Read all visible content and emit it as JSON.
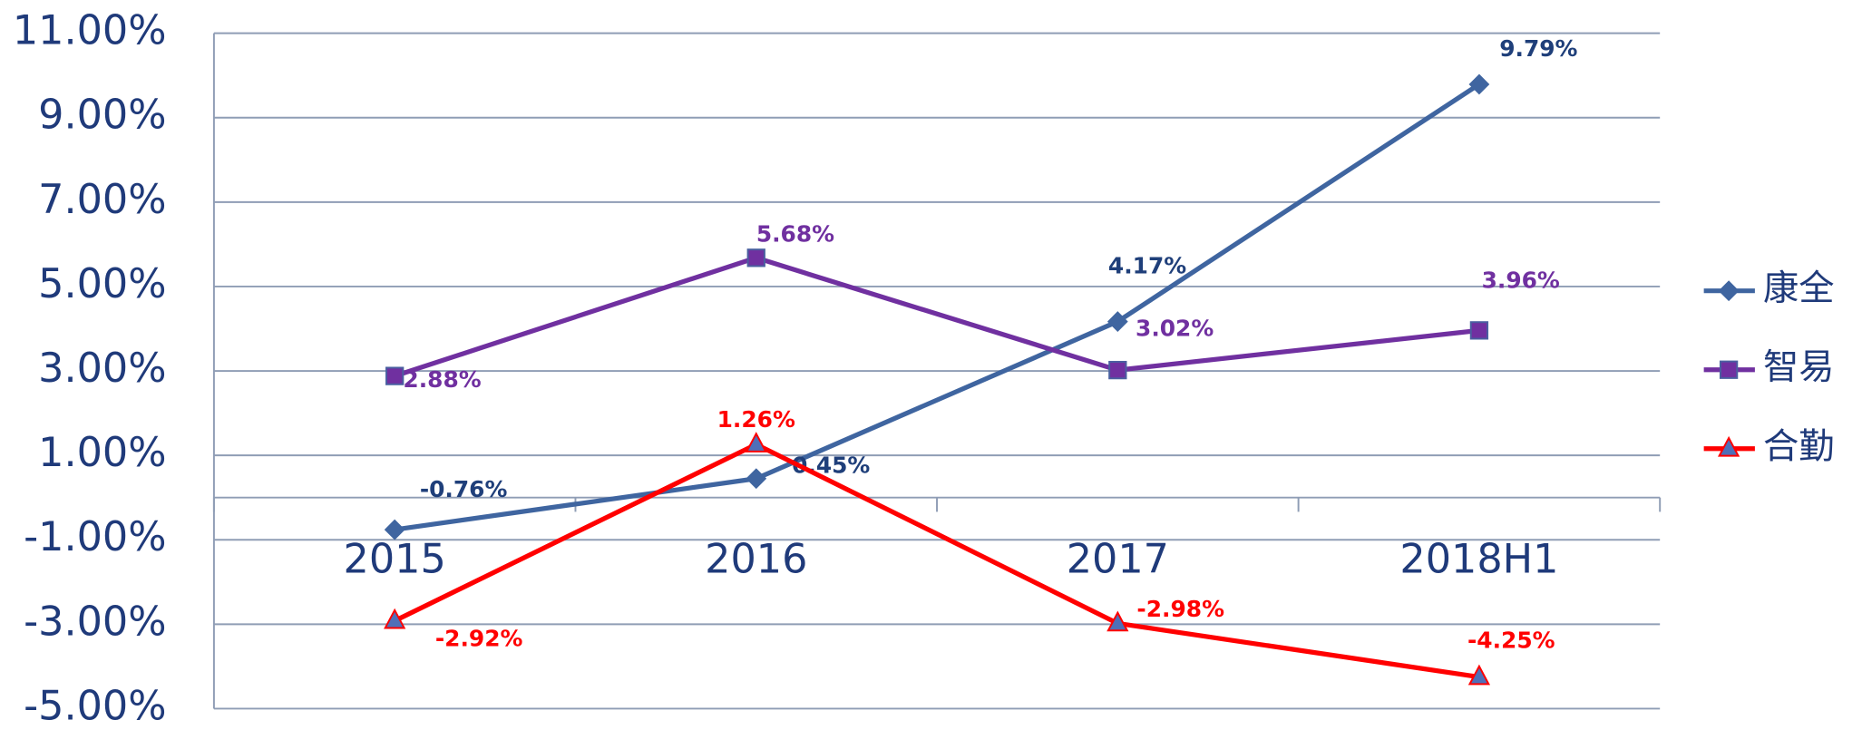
{
  "chart_data": {
    "type": "line",
    "categories": [
      "2015",
      "2016",
      "2017",
      "2018H1"
    ],
    "series": [
      {
        "name": "康全",
        "color": "#3f65a0",
        "label_color": "#1f3f7a",
        "marker": "diamond",
        "values": [
          -0.76,
          0.45,
          4.17,
          9.79
        ],
        "value_labels": [
          "-0.76%",
          "0.45%",
          "4.17%",
          "9.79%"
        ]
      },
      {
        "name": "智易",
        "color": "#7030a0",
        "label_color": "#7030a0",
        "marker": "square",
        "values": [
          2.88,
          5.68,
          3.02,
          3.96
        ],
        "value_labels": [
          "2.88%",
          "5.68%",
          "3.02%",
          "3.96%"
        ]
      },
      {
        "name": "合勤",
        "color": "#ff0000",
        "label_color": "#ff0000",
        "marker": "triangle",
        "values": [
          -2.92,
          1.26,
          -2.98,
          -4.25
        ],
        "value_labels": [
          "-2.92%",
          "1.26%",
          "-2.98%",
          "-4.25%"
        ]
      }
    ],
    "ylim": [
      -5,
      11
    ],
    "yticks": [
      {
        "value": -5,
        "label": "-5.00%"
      },
      {
        "value": -3,
        "label": "-3.00%"
      },
      {
        "value": -1,
        "label": "-1.00%"
      },
      {
        "value": 1,
        "label": "1.00%"
      },
      {
        "value": 3,
        "label": "3.00%"
      },
      {
        "value": 5,
        "label": "5.00%"
      },
      {
        "value": 7,
        "label": "7.00%"
      },
      {
        "value": 9,
        "label": "9.00%"
      },
      {
        "value": 11,
        "label": "11.00%"
      }
    ],
    "grid": true,
    "legend": "right"
  }
}
